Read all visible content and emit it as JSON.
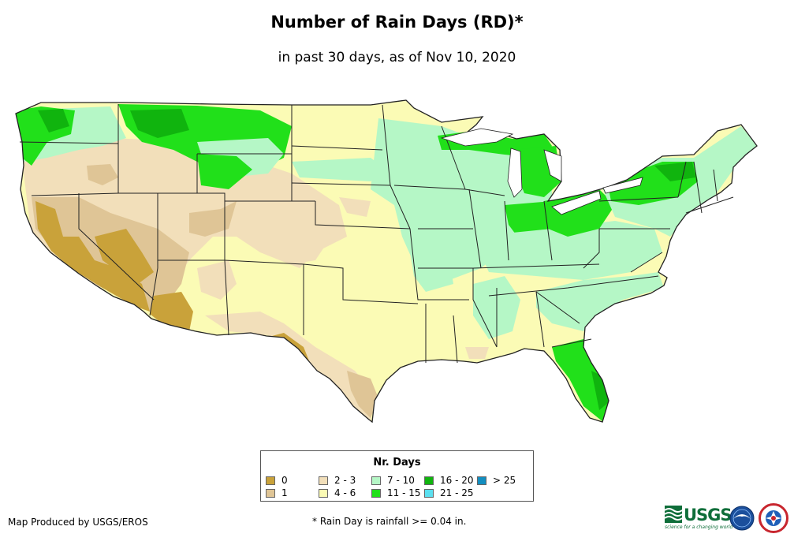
{
  "title": "Number of Rain Days (RD)*",
  "subtitle": "in past 30 days, as of Nov 10, 2020",
  "legend": {
    "title": "Nr. Days",
    "items": [
      {
        "label": "0",
        "color": "#c9a23a"
      },
      {
        "label": "1",
        "color": "#dfc596"
      },
      {
        "label": "2 - 3",
        "color": "#f2dfba"
      },
      {
        "label": "4 - 6",
        "color": "#fbfbb5"
      },
      {
        "label": "7 - 10",
        "color": "#b5f7c6"
      },
      {
        "label": "11 - 15",
        "color": "#21e01a"
      },
      {
        "label": "16 - 20",
        "color": "#10b40e"
      },
      {
        "label": "21 - 25",
        "color": "#5ce0f0"
      },
      {
        "label": "> 25",
        "color": "#138ec0"
      }
    ]
  },
  "footer": {
    "credit": "Map Produced by USGS/EROS",
    "note": "* Rain Day is rainfall >= 0.04 in."
  },
  "logos": {
    "usgs_text": "USGS",
    "usgs_tagline": "science for a changing world"
  }
}
